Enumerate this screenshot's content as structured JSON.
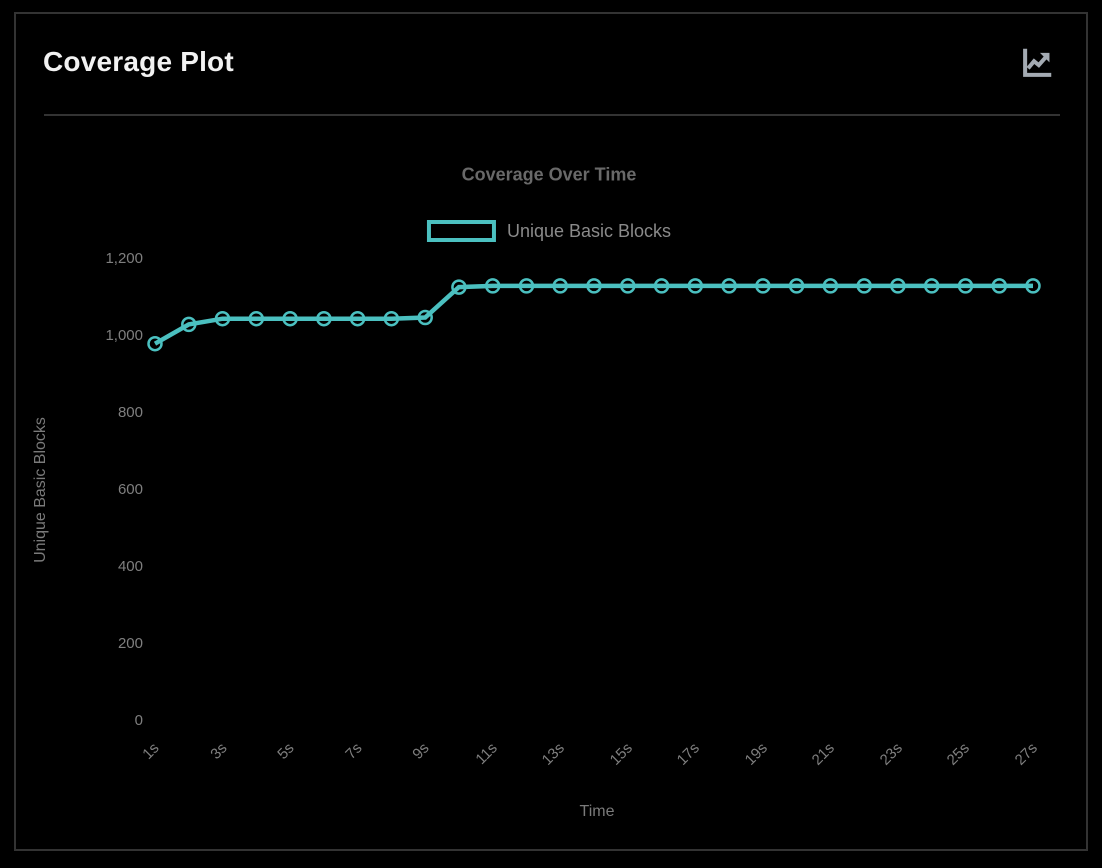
{
  "card": {
    "title": "Coverage Plot",
    "header_icon": "chart-line-icon"
  },
  "colors": {
    "background": "#000000",
    "card_border": "#333333",
    "card_title_text": "#f2f2f2",
    "header_icon_gray": "#a4abb3",
    "accent_teal": "#4bc0c0",
    "chart_title_text": "#696969",
    "legend_text": "#8a8a8a",
    "tick_text": "#7f7f7f",
    "axis_title_text": "#7a7a7a"
  },
  "chart_data": {
    "type": "line",
    "title": "Coverage Over Time",
    "xlabel": "Time",
    "ylabel": "Unique Basic Blocks",
    "ylim": [
      0,
      1200
    ],
    "grid": false,
    "legend_position": "top",
    "y_tick_labels": [
      "0",
      "200",
      "400",
      "600",
      "800",
      "1,000",
      "1,200"
    ],
    "y_tick_values": [
      0,
      200,
      400,
      600,
      800,
      1000,
      1200
    ],
    "x_tick_labels": [
      "1s",
      "3s",
      "5s",
      "7s",
      "9s",
      "11s",
      "13s",
      "15s",
      "17s",
      "19s",
      "21s",
      "23s",
      "25s",
      "27s"
    ],
    "x": [
      1,
      2,
      3,
      4,
      5,
      6,
      7,
      8,
      9,
      10,
      11,
      12,
      13,
      14,
      15,
      16,
      17,
      18,
      19,
      20,
      21,
      22,
      23,
      24,
      25,
      26,
      27
    ],
    "series": [
      {
        "name": "Unique Basic Blocks",
        "color": "#4bc0c0",
        "values": [
          980,
          1030,
          1045,
          1045,
          1045,
          1045,
          1045,
          1045,
          1048,
          1127,
          1130,
          1130,
          1130,
          1130,
          1130,
          1130,
          1130,
          1130,
          1130,
          1130,
          1130,
          1130,
          1130,
          1130,
          1130,
          1130,
          1130
        ]
      }
    ]
  }
}
